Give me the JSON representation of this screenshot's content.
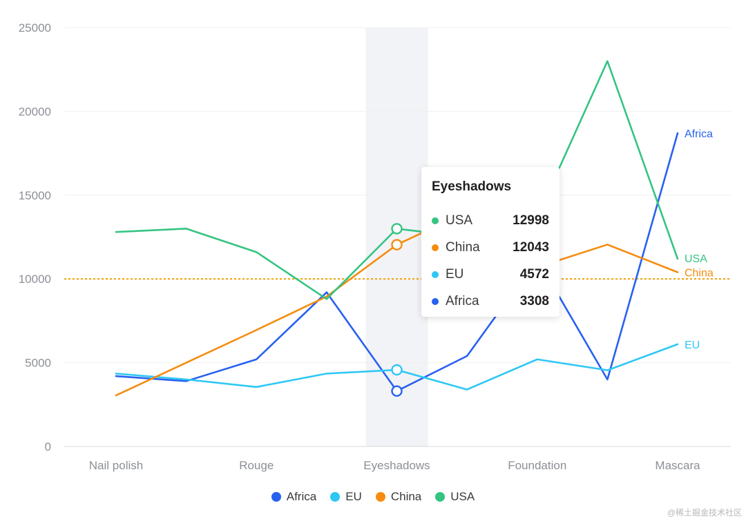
{
  "chart_data": {
    "type": "line",
    "categories": [
      "Nail polish",
      "",
      "Rouge",
      "",
      "Eyeshadows",
      "",
      "Foundation",
      "",
      "Mascara"
    ],
    "x_tick_labels": [
      "Nail polish",
      "Rouge",
      "Eyeshadows",
      "Foundation",
      "Mascara"
    ],
    "series": [
      {
        "name": "Africa",
        "color": "#2761f0",
        "values": [
          4200,
          3900,
          5200,
          9200,
          3308,
          5400,
          11200,
          4000,
          18700
        ]
      },
      {
        "name": "EU",
        "color": "#2ec7f5",
        "values": [
          4350,
          4000,
          3550,
          4350,
          4572,
          3400,
          5200,
          4550,
          6100
        ]
      },
      {
        "name": "China",
        "color": "#f58c0f",
        "values": [
          3050,
          5000,
          6950,
          8950,
          12043,
          14000,
          10700,
          12050,
          10400
        ]
      },
      {
        "name": "USA",
        "color": "#35c482",
        "values": [
          12800,
          13000,
          11600,
          8800,
          12998,
          12500,
          13700,
          23000,
          11200
        ]
      }
    ],
    "y_ticks": [
      0,
      5000,
      10000,
      15000,
      20000,
      25000
    ],
    "ylim": [
      0,
      25000
    ],
    "reference_line": {
      "value": 10000,
      "color": "#f0a50f",
      "style": "dotted"
    },
    "highlight_category": "Eyeshadows",
    "grid": "horizontal",
    "legend_position": "bottom",
    "end_labels": true,
    "tooltip": {
      "title": "Eyeshadows",
      "rows": [
        {
          "name": "USA",
          "value": "12998",
          "color": "#35c482"
        },
        {
          "name": "China",
          "value": "12043",
          "color": "#f58c0f"
        },
        {
          "name": "EU",
          "value": "4572",
          "color": "#2ec7f5"
        },
        {
          "name": "Africa",
          "value": "3308",
          "color": "#2761f0"
        }
      ]
    }
  },
  "legend": [
    {
      "label": "Africa",
      "color": "#2761f0"
    },
    {
      "label": "EU",
      "color": "#2ec7f5"
    },
    {
      "label": "China",
      "color": "#f58c0f"
    },
    {
      "label": "USA",
      "color": "#35c482"
    }
  ],
  "watermark": "@稀土掘金技术社区"
}
